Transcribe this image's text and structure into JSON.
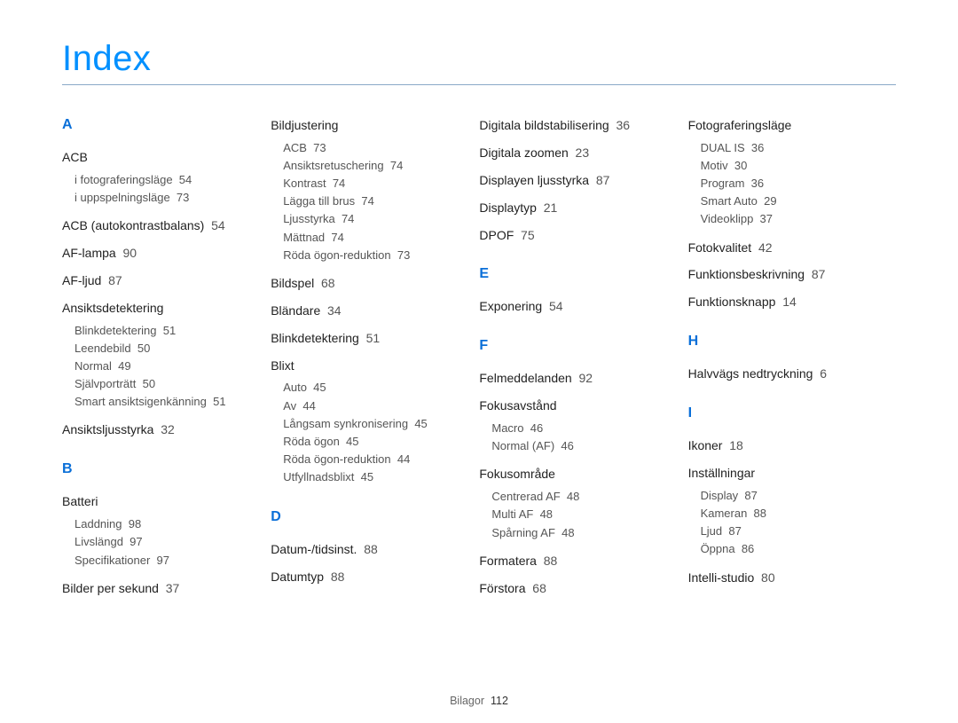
{
  "title": "Index",
  "footer": {
    "label": "Bilagor",
    "page": "112"
  },
  "colors": {
    "accent": "#0090ff",
    "letter": "#0a6fd8",
    "rule": "#8aa9c8",
    "text": "#222222",
    "subtext": "#555555",
    "background": "#ffffff"
  },
  "columns": [
    [
      {
        "type": "letter",
        "text": "A"
      },
      {
        "type": "group",
        "head": "ACB",
        "sub": [
          {
            "t": "i fotograferingsläge",
            "p": "54"
          },
          {
            "t": "i uppspelningsläge",
            "p": "73"
          }
        ]
      },
      {
        "type": "entry",
        "t": "ACB (autokontrastbalans)",
        "p": "54"
      },
      {
        "type": "entry",
        "t": "AF-lampa",
        "p": "90"
      },
      {
        "type": "entry",
        "t": "AF-ljud",
        "p": "87"
      },
      {
        "type": "group",
        "head": "Ansiktsdetektering",
        "sub": [
          {
            "t": "Blinkdetektering",
            "p": "51"
          },
          {
            "t": "Leendebild",
            "p": "50"
          },
          {
            "t": "Normal",
            "p": "49"
          },
          {
            "t": "Självporträtt",
            "p": "50"
          },
          {
            "t": "Smart ansiktsigenkänning",
            "p": "51"
          }
        ]
      },
      {
        "type": "entry",
        "t": "Ansiktsljusstyrka",
        "p": "32"
      },
      {
        "type": "letter",
        "text": "B",
        "mt": true
      },
      {
        "type": "group",
        "head": "Batteri",
        "sub": [
          {
            "t": "Laddning",
            "p": "98"
          },
          {
            "t": "Livslängd",
            "p": "97"
          },
          {
            "t": "Specifikationer",
            "p": "97"
          }
        ]
      },
      {
        "type": "entry",
        "t": "Bilder per sekund",
        "p": "37"
      }
    ],
    [
      {
        "type": "group",
        "head": "Bildjustering",
        "sub": [
          {
            "t": "ACB",
            "p": "73"
          },
          {
            "t": "Ansiktsretuschering",
            "p": "74"
          },
          {
            "t": "Kontrast",
            "p": "74"
          },
          {
            "t": "Lägga till brus",
            "p": "74"
          },
          {
            "t": "Ljusstyrka",
            "p": "74"
          },
          {
            "t": "Mättnad",
            "p": "74"
          },
          {
            "t": "Röda ögon-reduktion",
            "p": "73"
          }
        ]
      },
      {
        "type": "entry",
        "t": "Bildspel",
        "p": "68"
      },
      {
        "type": "entry",
        "t": "Bländare",
        "p": "34"
      },
      {
        "type": "entry",
        "t": "Blinkdetektering",
        "p": "51"
      },
      {
        "type": "group",
        "head": "Blixt",
        "sub": [
          {
            "t": "Auto",
            "p": "45"
          },
          {
            "t": "Av",
            "p": "44"
          },
          {
            "t": "Långsam synkronisering",
            "p": "45"
          },
          {
            "t": "Röda ögon",
            "p": "45"
          },
          {
            "t": "Röda ögon-reduktion",
            "p": "44"
          },
          {
            "t": "Utfyllnadsblixt",
            "p": "45"
          }
        ]
      },
      {
        "type": "letter",
        "text": "D",
        "mt": true
      },
      {
        "type": "entry",
        "t": "Datum-/tidsinst.",
        "p": "88"
      },
      {
        "type": "entry",
        "t": "Datumtyp",
        "p": "88"
      }
    ],
    [
      {
        "type": "entry",
        "t": "Digitala bildstabilisering",
        "p": "36"
      },
      {
        "type": "entry",
        "t": "Digitala zoomen",
        "p": "23"
      },
      {
        "type": "entry",
        "t": "Displayen ljusstyrka",
        "p": "87"
      },
      {
        "type": "entry",
        "t": "Displaytyp",
        "p": "21"
      },
      {
        "type": "entry",
        "t": "DPOF",
        "p": "75"
      },
      {
        "type": "letter",
        "text": "E",
        "mt": true
      },
      {
        "type": "entry",
        "t": "Exponering",
        "p": "54"
      },
      {
        "type": "letter",
        "text": "F",
        "mt": true
      },
      {
        "type": "entry",
        "t": "Felmeddelanden",
        "p": "92"
      },
      {
        "type": "group",
        "head": "Fokusavstånd",
        "sub": [
          {
            "t": "Macro",
            "p": "46"
          },
          {
            "t": "Normal (AF)",
            "p": "46"
          }
        ]
      },
      {
        "type": "group",
        "head": "Fokusområde",
        "sub": [
          {
            "t": "Centrerad AF",
            "p": "48"
          },
          {
            "t": "Multi AF",
            "p": "48"
          },
          {
            "t": "Spårning AF",
            "p": "48"
          }
        ]
      },
      {
        "type": "entry",
        "t": "Formatera",
        "p": "88"
      },
      {
        "type": "entry",
        "t": "Förstora",
        "p": "68"
      }
    ],
    [
      {
        "type": "group",
        "head": "Fotograferingsläge",
        "sub": [
          {
            "t": "DUAL IS",
            "p": "36"
          },
          {
            "t": "Motiv",
            "p": "30"
          },
          {
            "t": "Program",
            "p": "36"
          },
          {
            "t": "Smart Auto",
            "p": "29"
          },
          {
            "t": "Videoklipp",
            "p": "37"
          }
        ]
      },
      {
        "type": "entry",
        "t": "Fotokvalitet",
        "p": "42"
      },
      {
        "type": "entry",
        "t": "Funktionsbeskrivning",
        "p": "87"
      },
      {
        "type": "entry",
        "t": "Funktionsknapp",
        "p": "14"
      },
      {
        "type": "letter",
        "text": "H",
        "mt": true
      },
      {
        "type": "entry",
        "t": "Halvvägs nedtryckning",
        "p": "6"
      },
      {
        "type": "letter",
        "text": "I",
        "mt": true
      },
      {
        "type": "entry",
        "t": "Ikoner",
        "p": "18"
      },
      {
        "type": "group",
        "head": "Inställningar",
        "sub": [
          {
            "t": "Display",
            "p": "87"
          },
          {
            "t": "Kameran",
            "p": "88"
          },
          {
            "t": "Ljud",
            "p": "87"
          },
          {
            "t": "Öppna",
            "p": "86"
          }
        ]
      },
      {
        "type": "entry",
        "t": "Intelli-studio",
        "p": "80"
      }
    ]
  ]
}
